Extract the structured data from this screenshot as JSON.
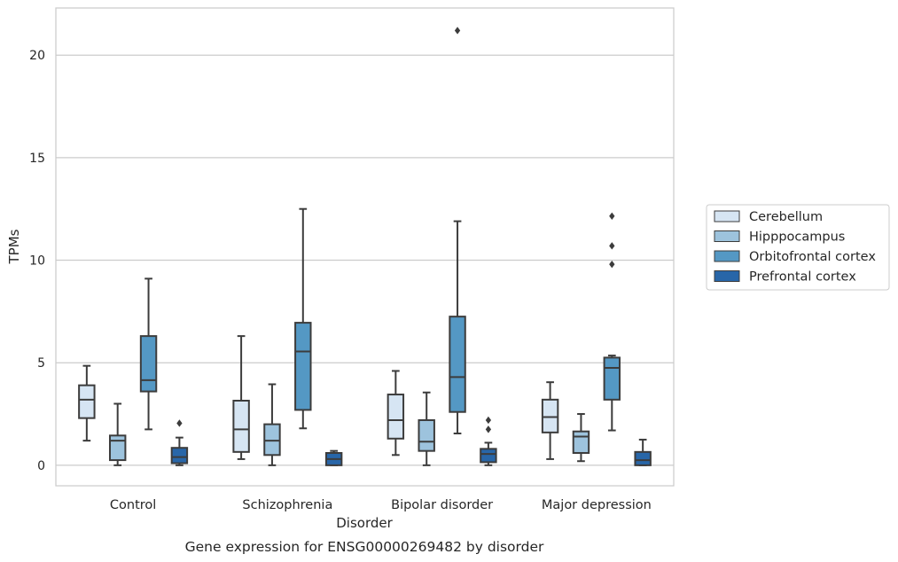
{
  "chart_data": {
    "type": "box",
    "title": "",
    "caption": "Gene expression for ENSG00000269482 by disorder",
    "xlabel": "Disorder",
    "ylabel": "TPMs",
    "ylim": [
      -1,
      22.3
    ],
    "yticks": [
      0,
      5,
      10,
      15,
      20
    ],
    "grid": "horizontal",
    "legend_position": "right",
    "categories": [
      "Control",
      "Schizophrenia",
      "Bipolar disorder",
      "Major depression"
    ],
    "series": [
      {
        "name": "Cerebellum",
        "color": "#d6e5f3",
        "boxes": [
          {
            "whislo": 1.2,
            "q1": 2.3,
            "med": 3.2,
            "q3": 3.9,
            "whishi": 4.85,
            "fliers": []
          },
          {
            "whislo": 0.3,
            "q1": 0.65,
            "med": 1.75,
            "q3": 3.15,
            "whishi": 6.3,
            "fliers": []
          },
          {
            "whislo": 0.5,
            "q1": 1.3,
            "med": 2.2,
            "q3": 3.45,
            "whishi": 4.6,
            "fliers": []
          },
          {
            "whislo": 0.3,
            "q1": 1.6,
            "med": 2.35,
            "q3": 3.2,
            "whishi": 4.05,
            "fliers": []
          }
        ]
      },
      {
        "name": "Hipppocampus",
        "color": "#9dc3dd",
        "boxes": [
          {
            "whislo": 0.0,
            "q1": 0.25,
            "med": 1.2,
            "q3": 1.45,
            "whishi": 3.0,
            "fliers": []
          },
          {
            "whislo": 0.0,
            "q1": 0.5,
            "med": 1.2,
            "q3": 2.0,
            "whishi": 3.95,
            "fliers": []
          },
          {
            "whislo": 0.0,
            "q1": 0.7,
            "med": 1.15,
            "q3": 2.2,
            "whishi": 3.55,
            "fliers": []
          },
          {
            "whislo": 0.2,
            "q1": 0.6,
            "med": 1.4,
            "q3": 1.65,
            "whishi": 2.5,
            "fliers": []
          }
        ]
      },
      {
        "name": "Orbitofrontal cortex",
        "color": "#5498c4",
        "boxes": [
          {
            "whislo": 1.75,
            "q1": 3.6,
            "med": 4.15,
            "q3": 6.3,
            "whishi": 9.1,
            "fliers": []
          },
          {
            "whislo": 1.8,
            "q1": 2.7,
            "med": 5.55,
            "q3": 6.95,
            "whishi": 12.5,
            "fliers": []
          },
          {
            "whislo": 1.55,
            "q1": 2.6,
            "med": 4.3,
            "q3": 7.25,
            "whishi": 11.9,
            "fliers": [
              21.2
            ]
          },
          {
            "whislo": 1.7,
            "q1": 3.2,
            "med": 4.75,
            "q3": 5.25,
            "whishi": 5.35,
            "fliers": [
              9.8,
              10.7,
              12.15
            ]
          }
        ]
      },
      {
        "name": "Prefrontal cortex",
        "color": "#2866a8",
        "boxes": [
          {
            "whislo": 0.0,
            "q1": 0.1,
            "med": 0.4,
            "q3": 0.85,
            "whishi": 1.35,
            "fliers": [
              2.05
            ]
          },
          {
            "whislo": 0.0,
            "q1": 0.0,
            "med": 0.3,
            "q3": 0.6,
            "whishi": 0.7,
            "fliers": []
          },
          {
            "whislo": 0.0,
            "q1": 0.15,
            "med": 0.55,
            "q3": 0.8,
            "whishi": 1.1,
            "fliers": [
              1.75,
              2.2
            ]
          },
          {
            "whislo": 0.0,
            "q1": 0.0,
            "med": 0.25,
            "q3": 0.65,
            "whishi": 1.25,
            "fliers": []
          }
        ]
      }
    ]
  }
}
